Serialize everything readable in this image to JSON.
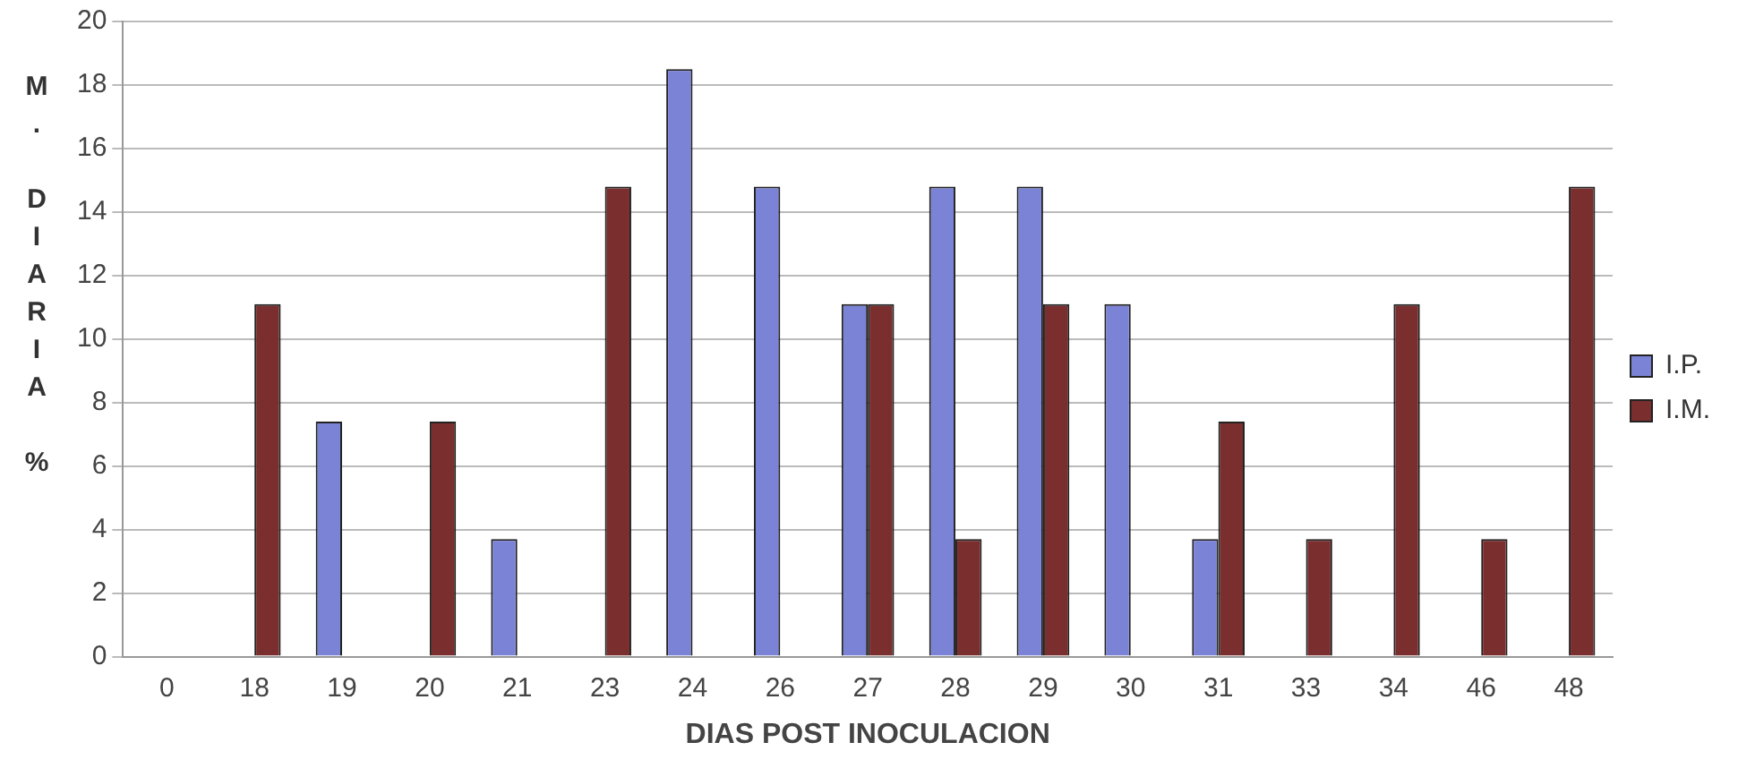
{
  "chart_data": {
    "type": "bar",
    "xlabel": "DIAS POST INOCULACION",
    "ylabel": "M. DIARIA %",
    "categories": [
      "0",
      "18",
      "19",
      "20",
      "21",
      "23",
      "24",
      "26",
      "27",
      "28",
      "29",
      "30",
      "31",
      "33",
      "34",
      "46",
      "48"
    ],
    "series": [
      {
        "name": "I.P.",
        "color": "#7b83d6",
        "values": [
          null,
          null,
          7.4,
          null,
          3.7,
          null,
          18.5,
          14.8,
          11.1,
          14.8,
          14.8,
          11.1,
          3.7,
          null,
          null,
          null,
          null
        ]
      },
      {
        "name": "I.M.",
        "color": "#7a2e2e",
        "values": [
          null,
          11.1,
          null,
          7.4,
          null,
          14.8,
          null,
          null,
          11.1,
          3.7,
          11.1,
          null,
          7.4,
          3.7,
          11.1,
          3.7,
          14.8
        ]
      }
    ],
    "ylim": [
      0,
      20
    ],
    "yticks": [
      0,
      2,
      4,
      6,
      8,
      10,
      12,
      14,
      16,
      18,
      20
    ],
    "grid": "y",
    "legend": "right"
  }
}
